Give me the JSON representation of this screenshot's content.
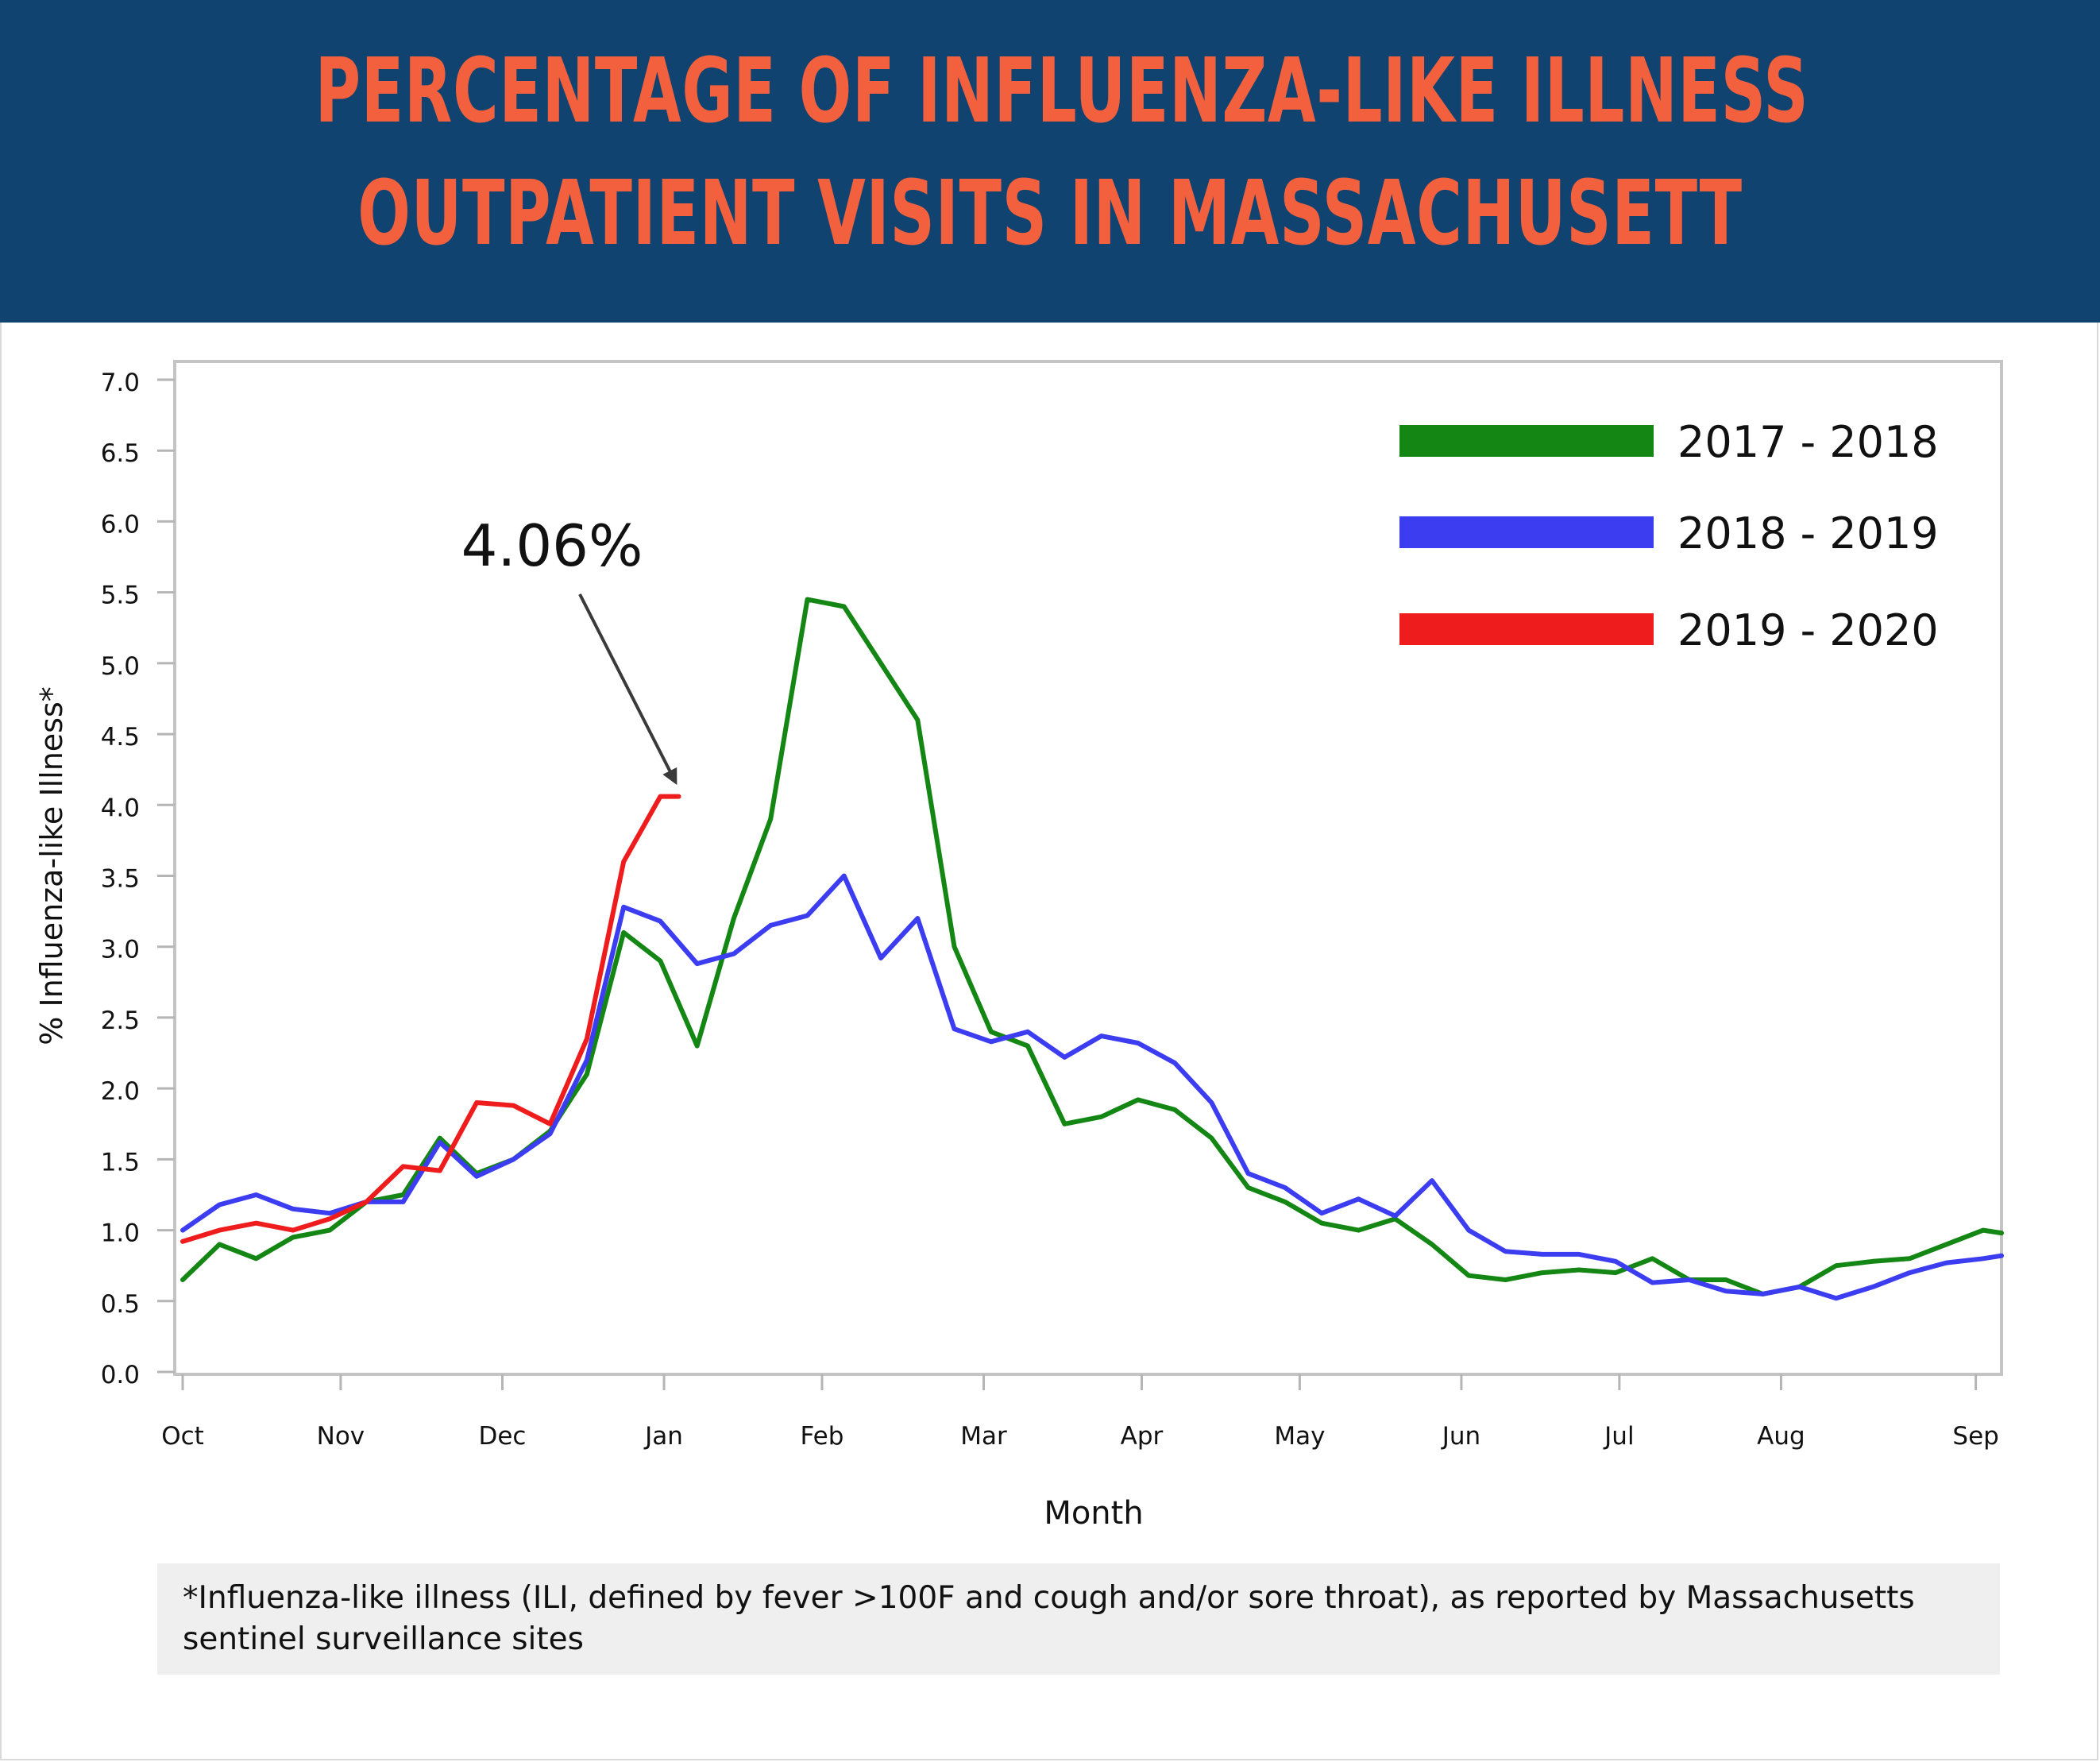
{
  "header": {
    "title_line1": "Percentage of Influenza-Like Illness",
    "title_line2": "Outpatient Visits in Massachusett"
  },
  "chart_data": {
    "type": "line",
    "title": "Percentage of Influenza-Like Illness Outpatient Visits in Massachusett",
    "xlabel": "Month",
    "ylabel": "% Influenza-like Illness*",
    "ylim": [
      0,
      7
    ],
    "yticks": [
      "0.0",
      "0.5",
      "1.0",
      "1.5",
      "2.0",
      "2.5",
      "3.0",
      "3.5",
      "4.0",
      "4.5",
      "5.0",
      "5.5",
      "6.0",
      "6.5",
      "7.0"
    ],
    "month_labels": [
      "Oct",
      "Nov",
      "Dec",
      "Jan",
      "Feb",
      "Mar",
      "Apr",
      "May",
      "Jun",
      "Jul",
      "Aug",
      "Sep"
    ],
    "month_weeks": [
      0,
      4.3,
      8.7,
      13.1,
      17.4,
      21.8,
      26.1,
      30.4,
      34.8,
      39.1,
      43.5,
      48.8
    ],
    "x_unit": "week of season (week 0 = early October)",
    "xlim": [
      0,
      49.5
    ],
    "grid": false,
    "legend_position": "top-right",
    "series": [
      {
        "name": "2017 - 2018",
        "color": "#138614",
        "x": [
          0,
          1,
          2,
          3,
          4,
          5,
          6,
          7,
          8,
          9,
          10,
          11,
          12,
          13,
          14,
          15,
          16,
          17,
          18,
          19,
          20,
          21,
          22,
          23,
          24,
          25,
          26,
          27,
          28,
          29,
          30,
          31,
          32,
          33,
          34,
          35,
          36,
          37,
          38,
          39,
          40,
          41,
          42,
          43,
          44,
          45,
          46,
          47,
          48,
          49,
          49.5
        ],
        "y": [
          0.65,
          0.9,
          0.8,
          0.95,
          1.0,
          1.2,
          1.25,
          1.65,
          1.4,
          1.5,
          1.7,
          2.1,
          3.1,
          2.9,
          2.3,
          3.2,
          3.9,
          5.45,
          5.4,
          5.0,
          4.6,
          3.0,
          2.4,
          2.3,
          1.75,
          1.8,
          1.92,
          1.85,
          1.65,
          1.3,
          1.2,
          1.05,
          1.0,
          1.08,
          0.9,
          0.68,
          0.65,
          0.7,
          0.72,
          0.7,
          0.8,
          0.65,
          0.65,
          0.55,
          0.6,
          0.75,
          0.78,
          0.8,
          0.9,
          1.0,
          0.98
        ]
      },
      {
        "name": "2018 - 2019",
        "color": "#3c3cf0",
        "x": [
          0,
          1,
          2,
          3,
          4,
          5,
          6,
          7,
          8,
          9,
          10,
          11,
          12,
          13,
          14,
          15,
          16,
          17,
          18,
          19,
          20,
          21,
          22,
          23,
          24,
          25,
          26,
          27,
          28,
          29,
          30,
          31,
          32,
          33,
          34,
          35,
          36,
          37,
          38,
          39,
          40,
          41,
          42,
          43,
          44,
          45,
          46,
          47,
          48,
          49,
          49.5
        ],
        "y": [
          1.0,
          1.18,
          1.25,
          1.15,
          1.12,
          1.2,
          1.2,
          1.62,
          1.38,
          1.5,
          1.68,
          2.2,
          3.28,
          3.18,
          2.88,
          2.95,
          3.15,
          3.22,
          3.5,
          2.92,
          3.2,
          2.42,
          2.33,
          2.4,
          2.22,
          2.37,
          2.32,
          2.18,
          1.9,
          1.4,
          1.3,
          1.12,
          1.22,
          1.1,
          1.35,
          1.0,
          0.85,
          0.83,
          0.83,
          0.78,
          0.63,
          0.65,
          0.57,
          0.55,
          0.6,
          0.52,
          0.6,
          0.7,
          0.77,
          0.8,
          0.82
        ]
      },
      {
        "name": "2019 - 2020",
        "color": "#ee1c1c",
        "x": [
          0,
          1,
          2,
          3,
          4,
          5,
          6,
          7,
          8,
          9,
          10,
          11,
          12,
          13,
          13.5
        ],
        "y": [
          0.92,
          1.0,
          1.05,
          1.0,
          1.08,
          1.2,
          1.45,
          1.42,
          1.9,
          1.88,
          1.75,
          2.35,
          3.6,
          4.06,
          4.06
        ]
      }
    ],
    "annotation": {
      "text": "4.06%",
      "points_to_x": 13.5,
      "points_to_y": 4.06
    }
  },
  "footnote": {
    "line1": "*Influenza-like illness (ILI, defined by fever >100F and cough and/or sore throat), as reported by Massachusetts",
    "line2": "sentinel surveillance sites"
  }
}
